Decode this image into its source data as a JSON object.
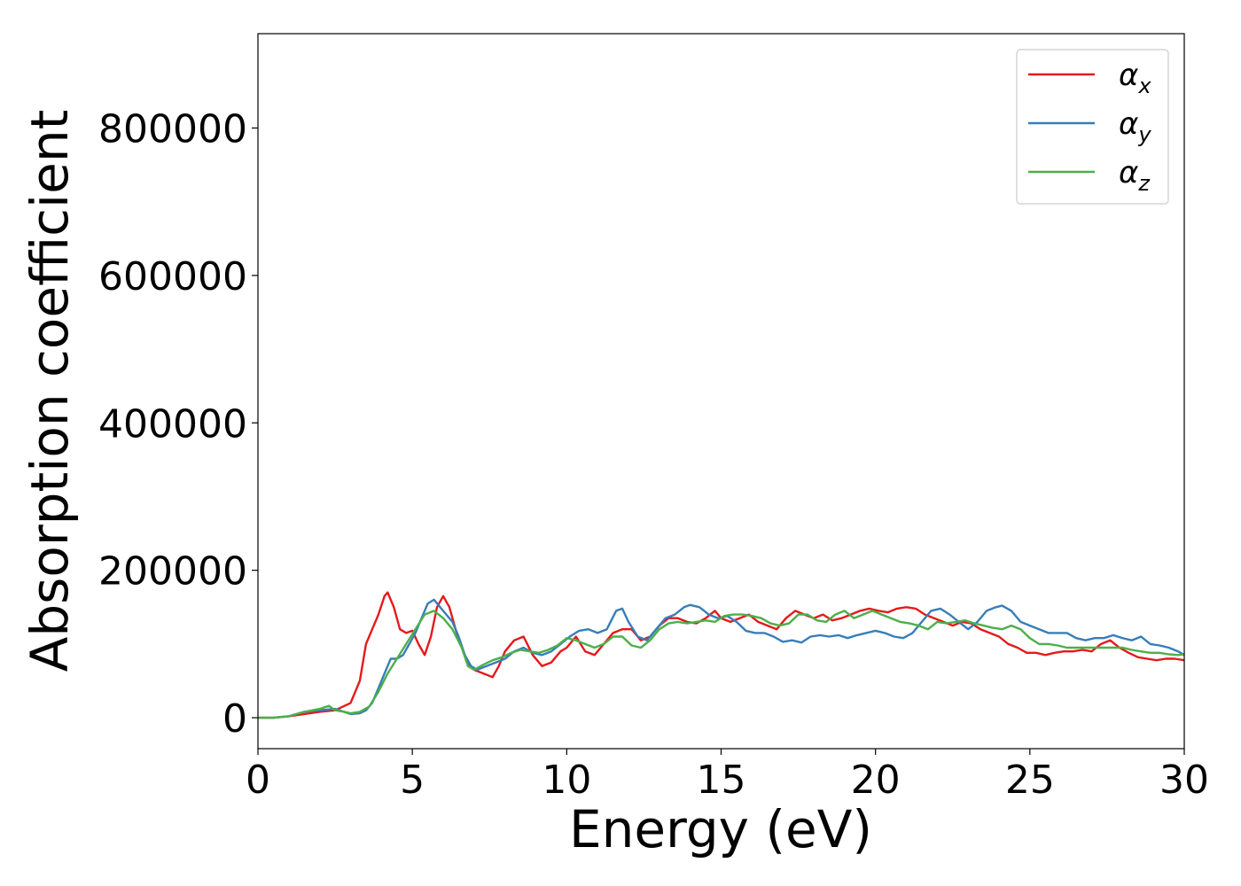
{
  "chart_data": {
    "type": "line",
    "xlabel": "Energy (eV)",
    "ylabel": "Absorption coefficient",
    "xlim": [
      0,
      30
    ],
    "ylim": [
      -42000,
      928000
    ],
    "xticks": [
      0,
      5,
      10,
      15,
      20,
      25,
      30
    ],
    "yticks": [
      0,
      200000,
      400000,
      600000,
      800000
    ],
    "xtick_labels": [
      "0",
      "5",
      "10",
      "15",
      "20",
      "25",
      "30"
    ],
    "ytick_labels": [
      "0",
      "200000",
      "400000",
      "600000",
      "800000"
    ],
    "grid": false,
    "legend_position": "top-right",
    "series": [
      {
        "name": "α_x",
        "legend_main": "α",
        "legend_sub": "x",
        "color": "#e41a1c",
        "x": [
          0,
          0.5,
          1,
          1.5,
          2,
          2.5,
          3,
          3.3,
          3.5,
          3.7,
          3.9,
          4.1,
          4.2,
          4.4,
          4.6,
          4.8,
          5.0,
          5.2,
          5.4,
          5.6,
          5.8,
          6.0,
          6.2,
          6.4,
          6.6,
          6.8,
          7.0,
          7.3,
          7.6,
          7.8,
          8.0,
          8.3,
          8.6,
          8.9,
          9.2,
          9.5,
          9.8,
          10.0,
          10.3,
          10.6,
          10.9,
          11.2,
          11.5,
          11.8,
          12.1,
          12.4,
          12.7,
          13.0,
          13.3,
          13.6,
          13.9,
          14.2,
          14.5,
          14.8,
          15.0,
          15.3,
          15.6,
          15.9,
          16.2,
          16.5,
          16.8,
          17.1,
          17.4,
          17.7,
          18.0,
          18.3,
          18.6,
          18.9,
          19.2,
          19.5,
          19.8,
          20.1,
          20.4,
          20.7,
          21.0,
          21.3,
          21.6,
          21.9,
          22.2,
          22.5,
          22.8,
          23.1,
          23.4,
          23.7,
          24.0,
          24.3,
          24.6,
          24.9,
          25.2,
          25.5,
          25.8,
          26.1,
          26.4,
          26.7,
          27.0,
          27.3,
          27.6,
          27.9,
          28.2,
          28.5,
          28.8,
          29.1,
          29.4,
          29.7,
          30.0
        ],
        "y": [
          0,
          0,
          2000,
          5000,
          8000,
          10000,
          20000,
          50000,
          100000,
          120000,
          140000,
          165000,
          170000,
          150000,
          120000,
          115000,
          118000,
          100000,
          85000,
          110000,
          150000,
          165000,
          150000,
          120000,
          95000,
          75000,
          65000,
          60000,
          55000,
          70000,
          90000,
          105000,
          110000,
          85000,
          70000,
          75000,
          90000,
          95000,
          110000,
          90000,
          85000,
          100000,
          115000,
          120000,
          120000,
          105000,
          110000,
          125000,
          135000,
          135000,
          130000,
          128000,
          135000,
          145000,
          135000,
          130000,
          135000,
          140000,
          130000,
          125000,
          120000,
          135000,
          145000,
          140000,
          135000,
          140000,
          132000,
          135000,
          140000,
          145000,
          148000,
          145000,
          143000,
          148000,
          150000,
          148000,
          140000,
          135000,
          130000,
          125000,
          130000,
          128000,
          120000,
          115000,
          110000,
          100000,
          95000,
          88000,
          88000,
          85000,
          88000,
          90000,
          90000,
          92000,
          90000,
          100000,
          105000,
          95000,
          88000,
          82000,
          80000,
          78000,
          80000,
          80000,
          78000
        ]
      },
      {
        "name": "α_y",
        "legend_main": "α",
        "legend_sub": "y",
        "color": "#377eb8",
        "x": [
          0,
          0.5,
          1,
          1.5,
          2,
          2.5,
          3,
          3.3,
          3.5,
          3.7,
          3.9,
          4.1,
          4.3,
          4.5,
          4.7,
          4.9,
          5.1,
          5.3,
          5.5,
          5.7,
          5.9,
          6.1,
          6.3,
          6.5,
          6.7,
          6.9,
          7.1,
          7.4,
          7.7,
          8.0,
          8.3,
          8.6,
          8.9,
          9.2,
          9.5,
          9.8,
          10.1,
          10.4,
          10.7,
          11.0,
          11.3,
          11.6,
          11.8,
          12.0,
          12.3,
          12.6,
          12.9,
          13.2,
          13.5,
          13.8,
          14.0,
          14.3,
          14.6,
          14.9,
          15.2,
          15.5,
          15.8,
          16.1,
          16.4,
          16.7,
          17.0,
          17.3,
          17.6,
          17.9,
          18.2,
          18.5,
          18.8,
          19.1,
          19.4,
          19.7,
          20.0,
          20.3,
          20.6,
          20.9,
          21.2,
          21.5,
          21.8,
          22.1,
          22.4,
          22.7,
          23.0,
          23.3,
          23.6,
          23.9,
          24.1,
          24.4,
          24.7,
          25.0,
          25.3,
          25.6,
          25.9,
          26.2,
          26.5,
          26.8,
          27.1,
          27.4,
          27.7,
          28.0,
          28.3,
          28.6,
          28.9,
          29.2,
          29.5,
          29.8,
          30.0
        ],
        "y": [
          0,
          0,
          2000,
          8000,
          10000,
          12000,
          5000,
          6000,
          10000,
          20000,
          40000,
          60000,
          80000,
          80000,
          85000,
          100000,
          115000,
          135000,
          155000,
          160000,
          150000,
          140000,
          130000,
          110000,
          85000,
          70000,
          65000,
          70000,
          75000,
          80000,
          90000,
          95000,
          88000,
          85000,
          90000,
          100000,
          110000,
          118000,
          120000,
          115000,
          120000,
          145000,
          148000,
          130000,
          110000,
          105000,
          120000,
          135000,
          140000,
          150000,
          153000,
          150000,
          140000,
          135000,
          138000,
          130000,
          118000,
          115000,
          115000,
          110000,
          103000,
          105000,
          102000,
          110000,
          112000,
          110000,
          112000,
          108000,
          112000,
          115000,
          118000,
          115000,
          110000,
          108000,
          115000,
          130000,
          145000,
          148000,
          140000,
          130000,
          120000,
          130000,
          145000,
          150000,
          152000,
          145000,
          130000,
          125000,
          120000,
          115000,
          115000,
          115000,
          108000,
          105000,
          108000,
          108000,
          112000,
          108000,
          105000,
          110000,
          100000,
          98000,
          95000,
          90000,
          85000
        ]
      },
      {
        "name": "α_z",
        "legend_main": "α",
        "legend_sub": "z",
        "color": "#4daf4a",
        "x": [
          0,
          0.5,
          1,
          1.5,
          2,
          2.3,
          2.5,
          2.8,
          3,
          3.3,
          3.6,
          3.9,
          4.2,
          4.5,
          4.8,
          5.1,
          5.4,
          5.7,
          6.0,
          6.3,
          6.6,
          6.8,
          7.0,
          7.3,
          7.6,
          7.9,
          8.2,
          8.5,
          8.8,
          9.1,
          9.4,
          9.7,
          10.0,
          10.3,
          10.6,
          10.9,
          11.2,
          11.5,
          11.8,
          12.1,
          12.4,
          12.7,
          13.0,
          13.3,
          13.6,
          13.9,
          14.2,
          14.5,
          14.8,
          15.1,
          15.4,
          15.7,
          16.0,
          16.3,
          16.6,
          16.9,
          17.2,
          17.5,
          17.8,
          18.1,
          18.4,
          18.7,
          19.0,
          19.3,
          19.6,
          19.9,
          20.2,
          20.5,
          20.8,
          21.1,
          21.4,
          21.7,
          22.0,
          22.3,
          22.6,
          22.9,
          23.2,
          23.5,
          23.8,
          24.1,
          24.4,
          24.7,
          25.0,
          25.3,
          25.6,
          25.9,
          26.2,
          26.5,
          26.8,
          27.1,
          27.4,
          27.7,
          28.0,
          28.3,
          28.6,
          28.9,
          29.2,
          29.5,
          29.8,
          30.0
        ],
        "y": [
          0,
          0,
          2000,
          8000,
          12000,
          16000,
          10000,
          8000,
          6000,
          8000,
          15000,
          35000,
          60000,
          80000,
          100000,
          120000,
          140000,
          145000,
          135000,
          120000,
          95000,
          70000,
          65000,
          72000,
          78000,
          82000,
          88000,
          92000,
          90000,
          88000,
          92000,
          98000,
          108000,
          105000,
          100000,
          95000,
          100000,
          110000,
          110000,
          98000,
          95000,
          105000,
          120000,
          128000,
          130000,
          128000,
          130000,
          132000,
          130000,
          138000,
          140000,
          140000,
          138000,
          135000,
          128000,
          125000,
          128000,
          140000,
          140000,
          132000,
          130000,
          140000,
          145000,
          135000,
          140000,
          145000,
          140000,
          135000,
          130000,
          128000,
          125000,
          120000,
          130000,
          128000,
          130000,
          132000,
          128000,
          125000,
          122000,
          120000,
          125000,
          120000,
          108000,
          100000,
          100000,
          98000,
          95000,
          95000,
          95000,
          95000,
          95000,
          95000,
          95000,
          92000,
          90000,
          88000,
          88000,
          86000,
          85000,
          86000
        ]
      }
    ]
  }
}
